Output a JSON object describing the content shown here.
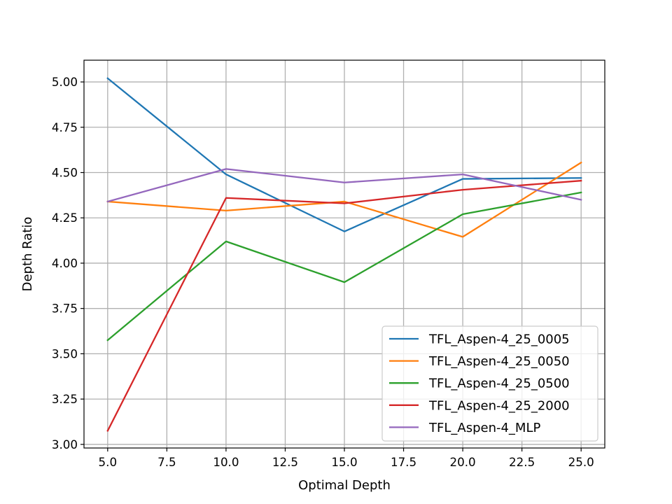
{
  "chart_data": {
    "type": "line",
    "title": "",
    "xlabel": "Optimal Depth",
    "ylabel": "Depth Ratio",
    "x": [
      5,
      10,
      15,
      20,
      25
    ],
    "xlim": [
      4.0,
      26.0
    ],
    "ylim": [
      2.98,
      5.12
    ],
    "xticks": [
      "5.0",
      "7.5",
      "10.0",
      "12.5",
      "15.0",
      "17.5",
      "20.0",
      "22.5",
      "25.0"
    ],
    "yticks": [
      "3.00",
      "3.25",
      "3.50",
      "3.75",
      "4.00",
      "4.25",
      "4.50",
      "4.75",
      "5.00"
    ],
    "grid": true,
    "legend_position": "lower-right",
    "series": [
      {
        "name": "TFL_Aspen-4_25_0005",
        "color": "#1f77b4",
        "values": [
          5.02,
          4.49,
          4.175,
          4.465,
          4.47
        ]
      },
      {
        "name": "TFL_Aspen-4_25_0050",
        "color": "#ff7f0e",
        "values": [
          4.34,
          4.29,
          4.34,
          4.145,
          4.555
        ]
      },
      {
        "name": "TFL_Aspen-4_25_0500",
        "color": "#2ca02c",
        "values": [
          3.575,
          4.12,
          3.895,
          4.27,
          4.39
        ]
      },
      {
        "name": "TFL_Aspen-4_25_2000",
        "color": "#d62728",
        "values": [
          3.075,
          4.36,
          4.33,
          4.405,
          4.455
        ]
      },
      {
        "name": "TFL_Aspen-4_MLP",
        "color": "#9467bd",
        "values": [
          4.34,
          4.52,
          4.445,
          4.49,
          4.35
        ]
      }
    ]
  }
}
